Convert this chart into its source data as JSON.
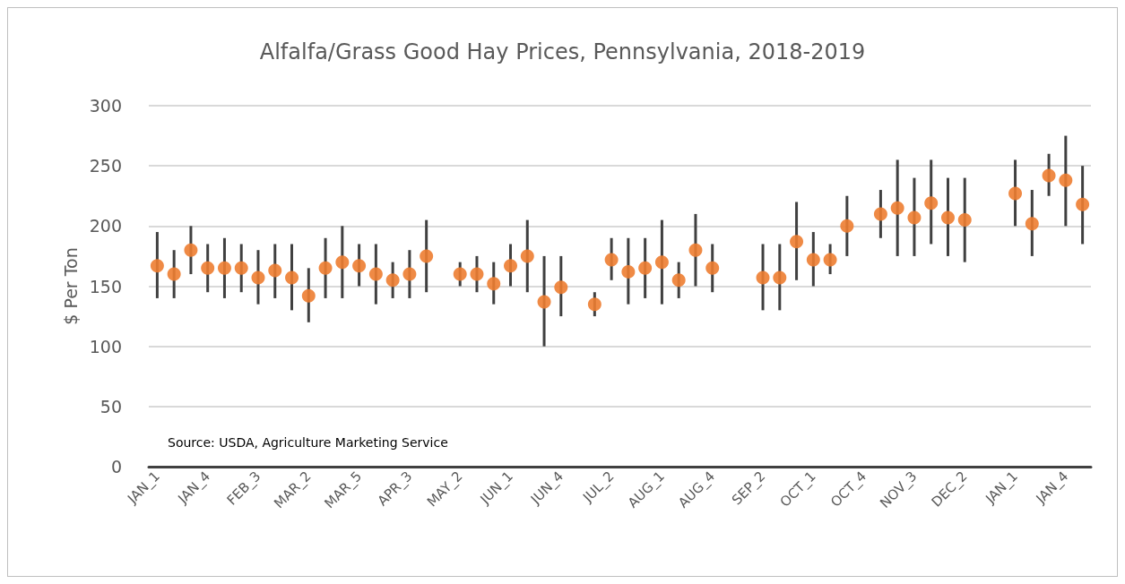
{
  "chart_data": {
    "type": "scatter",
    "title": "Alfalfa/Grass Good Hay Prices, Pennsylvania, 2018-2019",
    "ylabel": "$ Per Ton",
    "annotations": [
      "Source: USDA, Agriculture Marketing Service"
    ],
    "categories": [
      "JAN_1",
      null,
      null,
      "JAN_4",
      null,
      null,
      "FEB_3",
      null,
      null,
      "MAR_2",
      null,
      null,
      "MAR_5",
      null,
      null,
      "APR_3",
      null,
      null,
      "MAY_2",
      null,
      null,
      "JUN_1",
      null,
      null,
      "JUN_4",
      null,
      null,
      "JUL_2",
      null,
      null,
      "AUG_1",
      null,
      null,
      "AUG_4",
      null,
      null,
      "SEP_2",
      null,
      null,
      "OCT_1",
      null,
      null,
      "OCT_4",
      null,
      null,
      "NOV_3",
      null,
      null,
      "DEC_2",
      null,
      null,
      "JAN_1",
      null,
      null,
      "JAN_4",
      null
    ],
    "series": [
      {
        "color": "#ed7d31",
        "values": [
          167,
          160,
          180,
          165,
          165,
          165,
          157,
          163,
          157,
          142,
          165,
          170,
          167,
          160,
          155,
          160,
          175,
          null,
          160,
          160,
          152,
          167,
          175,
          137,
          149,
          null,
          135,
          172,
          162,
          165,
          170,
          155,
          180,
          165,
          null,
          null,
          157,
          157,
          187,
          172,
          172,
          200,
          null,
          210,
          215,
          207,
          219,
          207,
          205,
          null,
          null,
          227,
          202,
          242,
          238,
          218
        ],
        "errors": [
          [
            140,
            195
          ],
          [
            140,
            180
          ],
          [
            160,
            200
          ],
          [
            145,
            185
          ],
          [
            140,
            190
          ],
          [
            145,
            185
          ],
          [
            135,
            180
          ],
          [
            140,
            185
          ],
          [
            130,
            185
          ],
          [
            120,
            165
          ],
          [
            140,
            190
          ],
          [
            140,
            200
          ],
          [
            150,
            185
          ],
          [
            135,
            185
          ],
          [
            140,
            170
          ],
          [
            140,
            180
          ],
          [
            145,
            205
          ],
          null,
          [
            150,
            170
          ],
          [
            145,
            175
          ],
          [
            135,
            170
          ],
          [
            150,
            185
          ],
          [
            145,
            205
          ],
          [
            100,
            175
          ],
          [
            125,
            175
          ],
          null,
          [
            125,
            145
          ],
          [
            155,
            190
          ],
          [
            135,
            190
          ],
          [
            140,
            190
          ],
          [
            135,
            205
          ],
          [
            140,
            170
          ],
          [
            150,
            210
          ],
          [
            145,
            185
          ],
          null,
          null,
          [
            130,
            185
          ],
          [
            130,
            185
          ],
          [
            155,
            220
          ],
          [
            150,
            195
          ],
          [
            160,
            185
          ],
          [
            175,
            225
          ],
          null,
          [
            190,
            230
          ],
          [
            175,
            255
          ],
          [
            175,
            240
          ],
          [
            185,
            255
          ],
          [
            175,
            240
          ],
          [
            170,
            240
          ],
          null,
          null,
          [
            200,
            255
          ],
          [
            175,
            230
          ],
          [
            225,
            260
          ],
          [
            200,
            275
          ],
          [
            185,
            250
          ]
        ]
      }
    ],
    "ylim": [
      0,
      300
    ],
    "yticks": [
      0,
      50,
      100,
      150,
      200,
      250,
      300
    ],
    "grid": "y",
    "marker": "circle"
  }
}
